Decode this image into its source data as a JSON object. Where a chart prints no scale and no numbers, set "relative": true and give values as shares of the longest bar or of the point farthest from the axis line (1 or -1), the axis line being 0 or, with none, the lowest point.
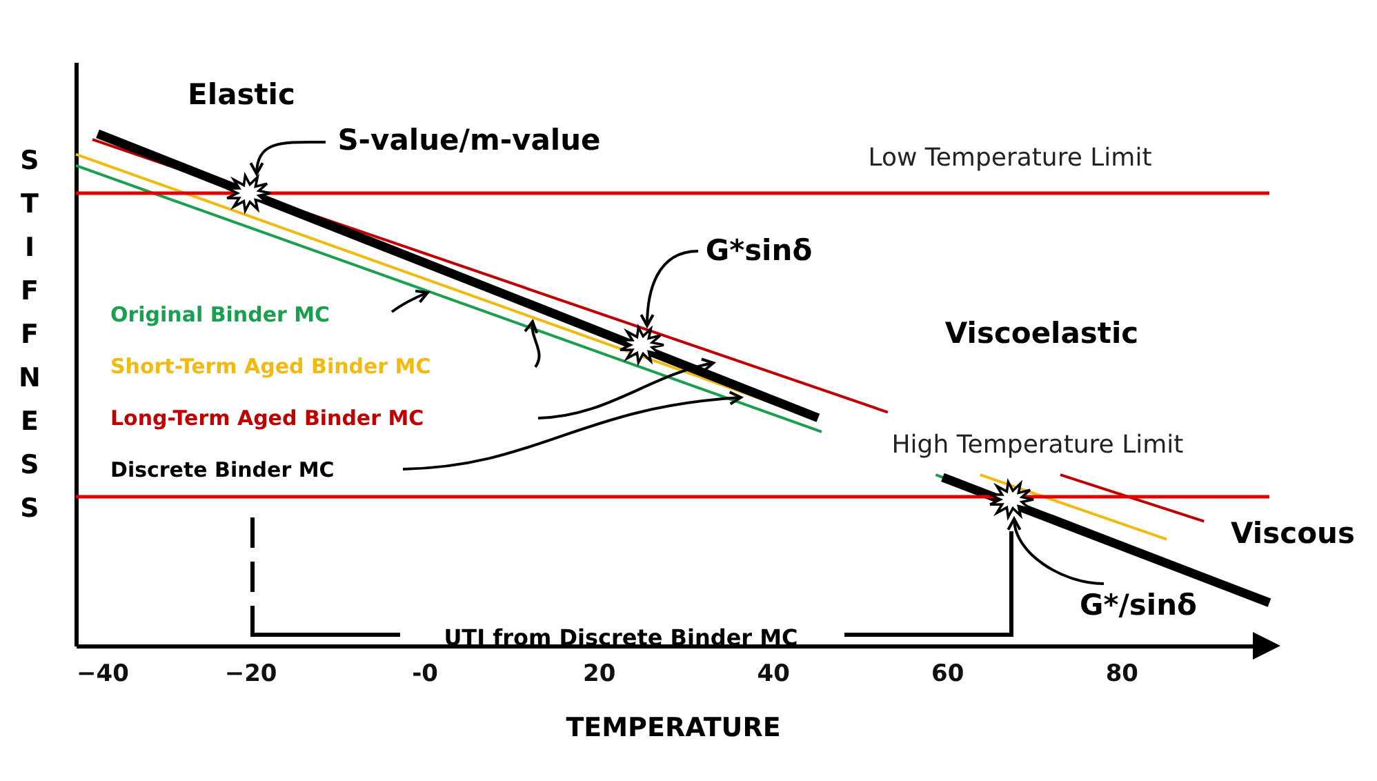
{
  "chart_data": {
    "type": "line",
    "relative": true,
    "xlabel": "TEMPERATURE",
    "ylabel": "STIFFNESS",
    "xlim": [
      -40,
      97
    ],
    "xticks": [
      -40,
      -20,
      {
        "value": 0,
        "label": "-0"
      },
      20,
      40,
      60,
      80
    ],
    "legend": "left",
    "line_style": "solid",
    "series": [
      {
        "name": "Original Binder MC",
        "color": "#1a9e50",
        "x": [
          -40,
          45.6,
          52,
          58.7,
          62
        ],
        "values": [
          0.938,
          0.418,
          null,
          0.334,
          0.313
        ]
      },
      {
        "name": "Short-Term Aged Binder MC",
        "color": "#f2b90f",
        "x": [
          -40,
          40,
          52,
          63.8,
          85.2
        ],
        "values": [
          0.96,
          0.474,
          null,
          0.334,
          0.208
        ]
      },
      {
        "name": "Long-Term Aged Binder MC",
        "color": "#c00000",
        "x": [
          -38.1,
          53.2,
          63,
          73,
          89.5
        ],
        "values": [
          0.989,
          0.456,
          null,
          0.334,
          0.243
        ]
      },
      {
        "name": "Discrete Binder MC",
        "color": "#000000",
        "x": [
          -37.5,
          45.2,
          52,
          59.5,
          97
        ],
        "values": [
          1.0,
          0.445,
          null,
          0.329,
          0.084
        ]
      }
    ],
    "ref_lines": [
      {
        "axis": "y",
        "value": 0.884,
        "label": "Low Temperature Limit",
        "color": "#e00000"
      },
      {
        "axis": "y",
        "value": 0.291,
        "label": "High Temperature Limit",
        "color": "#e00000"
      }
    ],
    "annotations": [
      "Elastic",
      "S-value/m-value",
      "G*sinδ",
      "Viscoelastic",
      "Viscous",
      "G*/sinδ",
      "UTI from Discrete Binder MC"
    ]
  }
}
